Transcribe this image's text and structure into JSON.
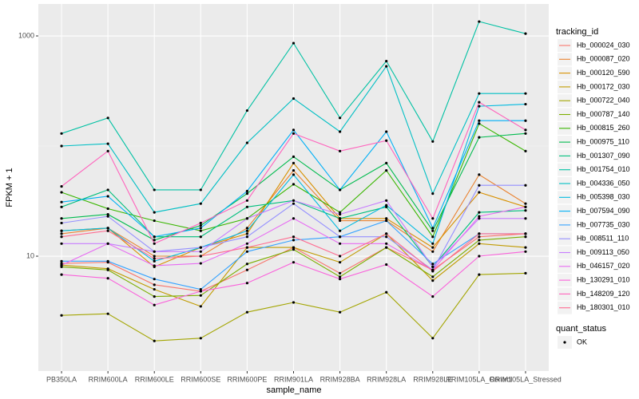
{
  "chart_data": {
    "type": "line",
    "log_y": true,
    "grid": true,
    "x_label": "sample_name",
    "y_label": "FPKM + 1",
    "legend_title": "tracking_id",
    "legend_position": "right",
    "point_legend_title": "quant_status",
    "point_legend_label": "OK",
    "point_color": "#000000",
    "categories": [
      "PB350LA",
      "RRIM600LA",
      "RRIM600LE",
      "RRIM600SE",
      "RRIM600PE",
      "RRIM901LA",
      "RRIM928BA",
      "RRIM928LA",
      "RRIM928LE",
      "RRIM105LA_Control",
      "RRIM105LA_Stressed"
    ],
    "ylim": [
      0.905,
      1950
    ],
    "yticks": [
      10,
      1000
    ],
    "minor_yticks": [
      100
    ],
    "series": [
      {
        "name": "Hb_000024_030",
        "color": "#F8766D",
        "values": [
          8.6,
          8.8,
          5.5,
          4.8,
          7.5,
          12,
          7,
          12,
          7.5,
          15,
          16
        ]
      },
      {
        "name": "Hb_000087_020",
        "color": "#EA8331",
        "values": [
          16,
          18,
          10,
          10,
          18,
          60,
          21,
          21,
          11,
          55,
          30
        ]
      },
      {
        "name": "Hb_000120_590",
        "color": "#D89000",
        "values": [
          17,
          18,
          8,
          12,
          16,
          70,
          22,
          22,
          12,
          38,
          28
        ]
      },
      {
        "name": "Hb_000172_030",
        "color": "#C09B00",
        "values": [
          8.3,
          7.7,
          5,
          3.5,
          12,
          12,
          8.8,
          16,
          6,
          13,
          12
        ]
      },
      {
        "name": "Hb_000722_040",
        "color": "#A3A500",
        "values": [
          2.9,
          3,
          1.7,
          1.8,
          3.1,
          3.8,
          3.1,
          4.7,
          1.8,
          6.8,
          7
        ]
      },
      {
        "name": "Hb_000787_140",
        "color": "#7CAE00",
        "values": [
          8,
          7.5,
          4.3,
          4.4,
          8.5,
          11.5,
          6.5,
          12,
          6.5,
          14,
          15
        ]
      },
      {
        "name": "Hb_000815_260",
        "color": "#39B600",
        "values": [
          38,
          27,
          21,
          17,
          22,
          45,
          25,
          60,
          15,
          160,
          90
        ]
      },
      {
        "name": "Hb_000975_110",
        "color": "#00BB4E",
        "values": [
          22,
          24,
          14,
          19,
          37,
          80,
          40,
          70,
          17,
          120,
          130
        ]
      },
      {
        "name": "Hb_001307_090",
        "color": "#00BF7D",
        "values": [
          28,
          40,
          15,
          15,
          28,
          32,
          22,
          28,
          8,
          25,
          26
        ]
      },
      {
        "name": "Hb_001754_010",
        "color": "#00C1A3",
        "values": [
          130,
          180,
          40,
          40,
          210,
          860,
          180,
          590,
          110,
          1350,
          1050
        ]
      },
      {
        "name": "Hb_004336_050",
        "color": "#00BFC4",
        "values": [
          100,
          105,
          25,
          30,
          107,
          270,
          135,
          530,
          37,
          300,
          300
        ]
      },
      {
        "name": "Hb_005398_030",
        "color": "#00BAE0",
        "values": [
          17,
          18,
          9,
          12,
          17,
          55,
          17,
          29,
          13,
          230,
          240
        ]
      },
      {
        "name": "Hb_007594_090",
        "color": "#00B0F6",
        "values": [
          31,
          35,
          15,
          18,
          39,
          140,
          40,
          135,
          18,
          170,
          170
        ]
      },
      {
        "name": "Hb_007735_030",
        "color": "#35A2FF",
        "values": [
          9,
          9,
          6.2,
          5,
          11,
          14,
          15,
          21,
          8.5,
          16,
          16
        ]
      },
      {
        "name": "Hb_008511_110",
        "color": "#9590FF",
        "values": [
          20,
          23,
          11,
          12,
          15,
          30,
          15,
          15,
          7.5,
          44,
          44
        ]
      },
      {
        "name": "Hb_009113_050",
        "color": "#C77CFF",
        "values": [
          13,
          13,
          11,
          11,
          22,
          32,
          24,
          32,
          8,
          22,
          22
        ]
      },
      {
        "name": "Hb_046157_020",
        "color": "#E76BF3",
        "values": [
          8.3,
          13,
          8.2,
          8.6,
          13,
          22,
          13,
          13,
          7.5,
          23,
          28
        ]
      },
      {
        "name": "Hb_130291_010",
        "color": "#FA62DB",
        "values": [
          6.8,
          6.3,
          3.6,
          4.8,
          5.7,
          8.8,
          6.2,
          8.4,
          4.3,
          10,
          11
        ]
      },
      {
        "name": "Hb_148209_120",
        "color": "#FF62BC",
        "values": [
          43,
          90,
          13,
          20,
          32,
          130,
          90,
          112,
          22,
          250,
          140
        ]
      },
      {
        "name": "Hb_180301_010",
        "color": "#FF6C91",
        "values": [
          15,
          17,
          9.5,
          10,
          12,
          15,
          10,
          16,
          7.3,
          16,
          16
        ]
      }
    ]
  }
}
